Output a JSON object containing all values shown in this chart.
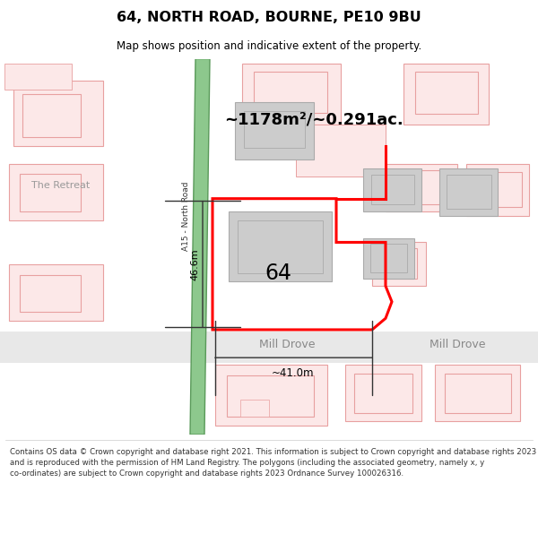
{
  "title": "64, NORTH ROAD, BOURNE, PE10 9BU",
  "subtitle": "Map shows position and indicative extent of the property.",
  "footer": "Contains OS data © Crown copyright and database right 2021. This information is subject to Crown copyright and database rights 2023 and is reproduced with the permission of HM Land Registry. The polygons (including the associated geometry, namely x, y co-ordinates) are subject to Crown copyright and database rights 2023 Ordnance Survey 100026316.",
  "bg_color": "#ffffff",
  "map_bg": "#ffffff",
  "pink_fill": "#fce8e8",
  "pink_edge": "#e8a0a0",
  "green_fill": "#8dc88d",
  "green_edge": "#5a9a5a",
  "red_prop": "#ff0000",
  "gray_fill": "#cccccc",
  "gray_edge": "#aaaaaa",
  "road_gray": "#e0e0e0",
  "area_text": "~1178m²/~0.291ac.",
  "num_64": "64",
  "label_a15": "A15 - North Road",
  "label_mill": "Mill Drove",
  "dim_v": "46.6m",
  "dim_h": "~41.0m",
  "label_retreat": "The Retreat"
}
